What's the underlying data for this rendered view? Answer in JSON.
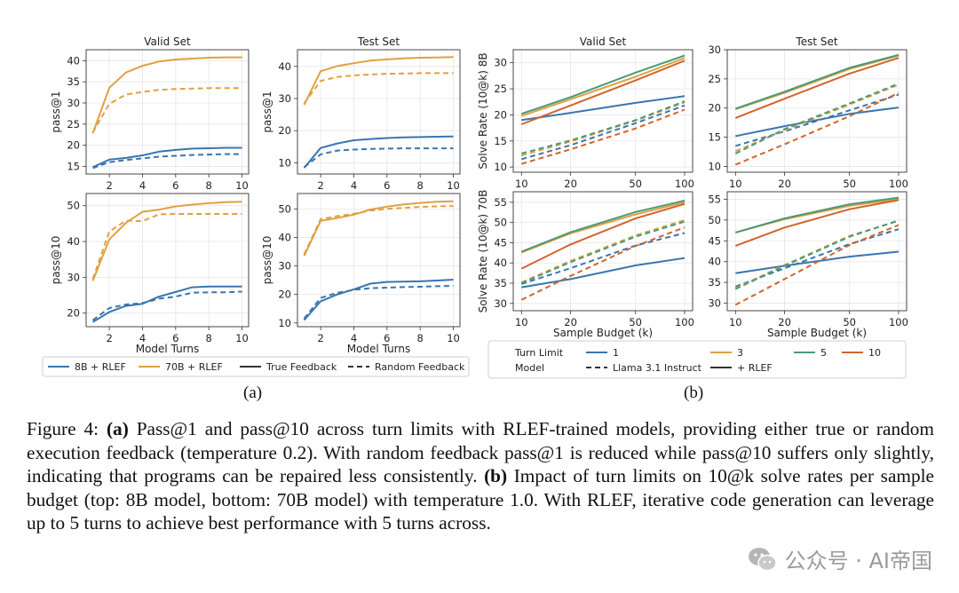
{
  "colors": {
    "blue": "#3a75b0",
    "gold": "#e0a043",
    "green": "#4a9a78",
    "orange": "#d0652a",
    "axis": "#333333",
    "grid": "#e6e6e6"
  },
  "chart_data": [
    {
      "id": "a_valid_pass1",
      "type": "line",
      "title": "Valid Set",
      "xlabel": "",
      "ylabel": "pass@1",
      "xlim": [
        0.6,
        10.4
      ],
      "ylim": [
        13.2,
        42.6
      ],
      "xticks": [
        2,
        4,
        6,
        8,
        10
      ],
      "yticks": [
        15,
        20,
        25,
        30,
        35,
        40
      ],
      "x": [
        1,
        2,
        3,
        4,
        5,
        6,
        7,
        8,
        9,
        10
      ],
      "series": [
        {
          "name": "70B + RLEF, True Feedback",
          "color": "#e0a043",
          "dash": false,
          "values": [
            22.8,
            33.6,
            37.2,
            38.8,
            39.8,
            40.3,
            40.5,
            40.7,
            40.8,
            40.8
          ]
        },
        {
          "name": "70B + RLEF, Random Feedback",
          "color": "#e0a043",
          "dash": true,
          "values": [
            23.0,
            29.8,
            32.0,
            32.6,
            33.1,
            33.3,
            33.4,
            33.5,
            33.5,
            33.5
          ]
        },
        {
          "name": "8B + RLEF, True Feedback",
          "color": "#3a75b0",
          "dash": false,
          "values": [
            14.8,
            16.6,
            17.0,
            17.6,
            18.5,
            18.9,
            19.2,
            19.3,
            19.4,
            19.4
          ]
        },
        {
          "name": "8B + RLEF, Random Feedback",
          "color": "#3a75b0",
          "dash": true,
          "values": [
            14.6,
            16.0,
            16.5,
            16.9,
            17.3,
            17.5,
            17.7,
            17.8,
            17.9,
            17.9
          ]
        }
      ]
    },
    {
      "id": "a_test_pass1",
      "type": "line",
      "title": "Test Set",
      "xlabel": "",
      "ylabel": "pass@1",
      "xlim": [
        0.6,
        10.4
      ],
      "ylim": [
        6.5,
        45.2
      ],
      "xticks": [
        2,
        4,
        6,
        8,
        10
      ],
      "yticks": [
        10,
        20,
        30,
        40
      ],
      "x": [
        1,
        2,
        3,
        4,
        5,
        6,
        7,
        8,
        9,
        10
      ],
      "series": [
        {
          "name": "70B + RLEF, True Feedback",
          "color": "#e0a043",
          "dash": false,
          "values": [
            28.0,
            38.5,
            40.1,
            41.0,
            41.8,
            42.2,
            42.5,
            42.7,
            42.8,
            42.9
          ]
        },
        {
          "name": "70B + RLEF, Random Feedback",
          "color": "#e0a043",
          "dash": true,
          "values": [
            28.5,
            35.5,
            36.7,
            37.2,
            37.5,
            37.7,
            37.8,
            37.9,
            37.9,
            37.9
          ]
        },
        {
          "name": "8B + RLEF, True Feedback",
          "color": "#3a75b0",
          "dash": false,
          "values": [
            8.4,
            14.6,
            16.0,
            17.0,
            17.4,
            17.7,
            17.9,
            18.0,
            18.1,
            18.2
          ]
        },
        {
          "name": "8B + RLEF, Random Feedback",
          "color": "#3a75b0",
          "dash": true,
          "values": [
            8.6,
            12.6,
            13.8,
            14.1,
            14.3,
            14.4,
            14.5,
            14.5,
            14.5,
            14.5
          ]
        }
      ]
    },
    {
      "id": "a_valid_pass10",
      "type": "line",
      "title": "",
      "xlabel": "Model Turns",
      "ylabel": "pass@10",
      "xlim": [
        0.6,
        10.4
      ],
      "ylim": [
        16.2,
        53.4
      ],
      "xticks": [
        2,
        4,
        6,
        8,
        10
      ],
      "yticks": [
        20,
        30,
        40,
        50
      ],
      "x": [
        1,
        2,
        3,
        4,
        5,
        6,
        7,
        8,
        9,
        10
      ],
      "series": [
        {
          "name": "70B + RLEF, True Feedback",
          "color": "#e0a043",
          "dash": false,
          "values": [
            29.0,
            40.6,
            45.2,
            48.3,
            48.9,
            49.8,
            50.3,
            50.7,
            51.0,
            51.1
          ]
        },
        {
          "name": "70B + RLEF, Random Feedback",
          "color": "#e0a043",
          "dash": true,
          "values": [
            29.5,
            42.8,
            45.8,
            45.7,
            47.6,
            47.7,
            47.7,
            47.7,
            47.7,
            47.7
          ]
        },
        {
          "name": "8B + RLEF, True Feedback",
          "color": "#3a75b0",
          "dash": false,
          "values": [
            17.5,
            20.3,
            22.0,
            22.6,
            24.6,
            25.9,
            27.2,
            27.4,
            27.4,
            27.4
          ]
        },
        {
          "name": "8B + RLEF, Random Feedback",
          "color": "#3a75b0",
          "dash": true,
          "values": [
            18.0,
            21.4,
            22.4,
            22.8,
            24.0,
            24.6,
            25.7,
            25.8,
            25.8,
            26.0
          ]
        }
      ]
    },
    {
      "id": "a_test_pass10",
      "type": "line",
      "title": "",
      "xlabel": "Model Turns",
      "ylabel": "pass@10",
      "xlim": [
        0.6,
        10.4
      ],
      "ylim": [
        8.7,
        55.4
      ],
      "xticks": [
        2,
        4,
        6,
        8,
        10
      ],
      "yticks": [
        10,
        20,
        30,
        40,
        50
      ],
      "x": [
        1,
        2,
        3,
        4,
        5,
        6,
        7,
        8,
        9,
        10
      ],
      "series": [
        {
          "name": "70B + RLEF, True Feedback",
          "color": "#e0a043",
          "dash": false,
          "values": [
            33.5,
            45.8,
            46.8,
            48.0,
            49.8,
            50.8,
            51.6,
            52.1,
            52.5,
            52.7
          ]
        },
        {
          "name": "70B + RLEF, Random Feedback",
          "color": "#e0a043",
          "dash": true,
          "values": [
            34.0,
            46.4,
            47.5,
            48.3,
            49.4,
            50.0,
            50.4,
            50.7,
            50.9,
            51.0
          ]
        },
        {
          "name": "8B + RLEF, True Feedback",
          "color": "#3a75b0",
          "dash": false,
          "values": [
            11.0,
            17.6,
            20.0,
            21.8,
            23.8,
            24.4,
            24.5,
            24.6,
            24.9,
            25.2
          ]
        },
        {
          "name": "8B + RLEF, Random Feedback",
          "color": "#3a75b0",
          "dash": true,
          "values": [
            11.5,
            18.8,
            20.6,
            21.6,
            22.2,
            22.4,
            22.6,
            22.7,
            22.9,
            23.0
          ]
        }
      ]
    },
    {
      "id": "b_valid_8b",
      "type": "line",
      "xscale": "log",
      "title": "Valid Set",
      "xlabel": "",
      "ylabel": "Solve Rate (10@k) 8B",
      "xlim": [
        8.9,
        112
      ],
      "ylim": [
        9.0,
        32.5
      ],
      "xticks": [
        10,
        20,
        50,
        100
      ],
      "yticks": [
        10,
        15,
        20,
        25,
        30
      ],
      "x": [
        10,
        20,
        50,
        100
      ],
      "series": [
        {
          "name": "Turn Limit 1, + RLEF",
          "color": "#3a75b0",
          "dash": false,
          "values": [
            19.0,
            20.4,
            22.3,
            23.6
          ]
        },
        {
          "name": "Turn Limit 3, + RLEF",
          "color": "#e0a043",
          "dash": false,
          "values": [
            19.8,
            23.0,
            27.3,
            30.9
          ]
        },
        {
          "name": "Turn Limit 5, + RLEF",
          "color": "#4a9a78",
          "dash": false,
          "values": [
            20.2,
            23.4,
            28.1,
            31.4
          ]
        },
        {
          "name": "Turn Limit 10, + RLEF",
          "color": "#d0652a",
          "dash": false,
          "values": [
            18.2,
            21.8,
            26.6,
            30.4
          ]
        },
        {
          "name": "Turn Limit 1, Llama 3.1 Instruct",
          "color": "#3a75b0",
          "dash": true,
          "values": [
            11.5,
            14.2,
            18.4,
            21.8
          ]
        },
        {
          "name": "Turn Limit 3, Llama 3.1 Instruct",
          "color": "#e0a043",
          "dash": true,
          "values": [
            12.2,
            14.9,
            18.9,
            22.4
          ]
        },
        {
          "name": "Turn Limit 5, Llama 3.1 Instruct",
          "color": "#4a9a78",
          "dash": true,
          "values": [
            12.6,
            15.1,
            19.0,
            22.6
          ]
        },
        {
          "name": "Turn Limit 10, Llama 3.1 Instruct",
          "color": "#d0652a",
          "dash": true,
          "values": [
            10.6,
            13.4,
            17.4,
            21.0
          ]
        }
      ]
    },
    {
      "id": "b_test_8b",
      "type": "line",
      "xscale": "log",
      "title": "Test Set",
      "xlabel": "",
      "ylabel": "",
      "xlim": [
        8.9,
        112
      ],
      "ylim": [
        9.0,
        30.0
      ],
      "xticks": [
        10,
        20,
        50,
        100
      ],
      "yticks": [
        10,
        15,
        20,
        25,
        30
      ],
      "x": [
        10,
        20,
        50,
        100
      ],
      "series": [
        {
          "name": "Turn Limit 1, + RLEF",
          "color": "#3a75b0",
          "dash": false,
          "values": [
            15.2,
            16.9,
            19.0,
            20.1
          ]
        },
        {
          "name": "Turn Limit 3, + RLEF",
          "color": "#e0a043",
          "dash": false,
          "values": [
            19.8,
            22.6,
            26.7,
            29.0
          ]
        },
        {
          "name": "Turn Limit 5, + RLEF",
          "color": "#4a9a78",
          "dash": false,
          "values": [
            19.9,
            22.8,
            26.9,
            29.1
          ]
        },
        {
          "name": "Turn Limit 10, + RLEF",
          "color": "#d0652a",
          "dash": false,
          "values": [
            18.3,
            21.6,
            25.9,
            28.6
          ]
        },
        {
          "name": "Turn Limit 1, Llama 3.1 Instruct",
          "color": "#3a75b0",
          "dash": true,
          "values": [
            13.5,
            16.0,
            19.6,
            22.3
          ]
        },
        {
          "name": "Turn Limit 3, Llama 3.1 Instruct",
          "color": "#e0a043",
          "dash": true,
          "values": [
            12.6,
            16.2,
            20.6,
            24.0
          ]
        },
        {
          "name": "Turn Limit 5, Llama 3.1 Instruct",
          "color": "#4a9a78",
          "dash": true,
          "values": [
            12.2,
            16.4,
            20.8,
            24.2
          ]
        },
        {
          "name": "Turn Limit 10, Llama 3.1 Instruct",
          "color": "#d0652a",
          "dash": true,
          "values": [
            10.3,
            13.8,
            18.6,
            22.6
          ]
        }
      ]
    },
    {
      "id": "b_valid_70b",
      "type": "line",
      "xscale": "log",
      "title": "",
      "xlabel": "Sample Budget (k)",
      "ylabel": "Solve Rate (10@k) 70B",
      "xlim": [
        8.9,
        112
      ],
      "ylim": [
        28.2,
        57.6
      ],
      "xticks": [
        10,
        20,
        50,
        100
      ],
      "yticks": [
        30,
        35,
        40,
        45,
        50,
        55
      ],
      "x": [
        10,
        20,
        50,
        100
      ],
      "series": [
        {
          "name": "Turn Limit 1, + RLEF",
          "color": "#3a75b0",
          "dash": false,
          "values": [
            34.0,
            36.0,
            39.4,
            41.2
          ]
        },
        {
          "name": "Turn Limit 3, + RLEF",
          "color": "#e0a043",
          "dash": false,
          "values": [
            42.6,
            47.3,
            52.0,
            55.0
          ]
        },
        {
          "name": "Turn Limit 5, + RLEF",
          "color": "#4a9a78",
          "dash": false,
          "values": [
            42.8,
            47.6,
            52.6,
            55.4
          ]
        },
        {
          "name": "Turn Limit 10, + RLEF",
          "color": "#d0652a",
          "dash": false,
          "values": [
            38.6,
            44.6,
            51.0,
            54.6
          ]
        },
        {
          "name": "Turn Limit 1, Llama 3.1 Instruct",
          "color": "#3a75b0",
          "dash": true,
          "values": [
            34.8,
            38.7,
            44.3,
            47.4
          ]
        },
        {
          "name": "Turn Limit 3, Llama 3.1 Instruct",
          "color": "#e0a043",
          "dash": true,
          "values": [
            35.2,
            40.5,
            46.8,
            50.6
          ]
        },
        {
          "name": "Turn Limit 5, Llama 3.1 Instruct",
          "color": "#4a9a78",
          "dash": true,
          "values": [
            35.0,
            40.2,
            46.5,
            50.2
          ]
        },
        {
          "name": "Turn Limit 10, Llama 3.1 Instruct",
          "color": "#d0652a",
          "dash": true,
          "values": [
            30.9,
            36.8,
            44.2,
            48.8
          ]
        }
      ]
    },
    {
      "id": "b_test_70b",
      "type": "line",
      "xscale": "log",
      "title": "",
      "xlabel": "Sample Budget (k)",
      "ylabel": "",
      "xlim": [
        8.9,
        112
      ],
      "ylim": [
        28.2,
        56.8
      ],
      "xticks": [
        10,
        20,
        50,
        100
      ],
      "yticks": [
        30,
        35,
        40,
        45,
        50,
        55
      ],
      "x": [
        10,
        20,
        50,
        100
      ],
      "series": [
        {
          "name": "Turn Limit 1, + RLEF",
          "color": "#3a75b0",
          "dash": false,
          "values": [
            37.2,
            39.0,
            41.2,
            42.4
          ]
        },
        {
          "name": "Turn Limit 3, + RLEF",
          "color": "#e0a043",
          "dash": false,
          "values": [
            47.0,
            50.2,
            53.4,
            55.0
          ]
        },
        {
          "name": "Turn Limit 5, + RLEF",
          "color": "#4a9a78",
          "dash": false,
          "values": [
            47.0,
            50.4,
            53.8,
            55.4
          ]
        },
        {
          "name": "Turn Limit 10, + RLEF",
          "color": "#d0652a",
          "dash": false,
          "values": [
            43.8,
            48.2,
            52.6,
            54.8
          ]
        },
        {
          "name": "Turn Limit 1, Llama 3.1 Instruct",
          "color": "#3a75b0",
          "dash": true,
          "values": [
            34.0,
            38.4,
            44.2,
            47.8
          ]
        },
        {
          "name": "Turn Limit 3, Llama 3.1 Instruct",
          "color": "#e0a043",
          "dash": true,
          "values": [
            33.6,
            39.2,
            46.2,
            49.8
          ]
        },
        {
          "name": "Turn Limit 5, Llama 3.1 Instruct",
          "color": "#4a9a78",
          "dash": true,
          "values": [
            33.4,
            39.0,
            46.0,
            49.9
          ]
        },
        {
          "name": "Turn Limit 10, Llama 3.1 Instruct",
          "color": "#d0652a",
          "dash": true,
          "values": [
            29.6,
            35.8,
            44.0,
            48.8
          ]
        }
      ]
    }
  ],
  "legend_a": {
    "items": [
      {
        "label": "8B + RLEF",
        "color": "#3a75b0",
        "dash": false
      },
      {
        "label": "70B + RLEF",
        "color": "#e0a043",
        "dash": false
      },
      {
        "label": "True Feedback",
        "color": "#333333",
        "dash": false
      },
      {
        "label": "Random Feedback",
        "color": "#333333",
        "dash": true
      }
    ]
  },
  "legend_b": {
    "turn_limit_label": "Turn Limit",
    "model_label": "Model",
    "turn_items": [
      {
        "label": "1",
        "color": "#3a75b0"
      },
      {
        "label": "3",
        "color": "#e0a043"
      },
      {
        "label": "5",
        "color": "#4a9a78"
      },
      {
        "label": "10",
        "color": "#d0652a"
      }
    ],
    "model_items": [
      {
        "label": "Llama 3.1 Instruct",
        "color": "#333333",
        "dash": true
      },
      {
        "label": "+ RLEF",
        "color": "#333333",
        "dash": false
      }
    ]
  },
  "panel_labels": {
    "a": "(a)",
    "b": "(b)"
  },
  "caption": {
    "prefix": "Figure 4: ",
    "a_label": "(a)",
    "a_text": " Pass@1 and pass@10 across turn limits with RLEF-trained models, providing either true or random execution feedback (temperature 0.2). With random feedback pass@1 is reduced while pass@10 suffers only slightly, indicating that programs can be repaired less consistently. ",
    "b_label": "(b)",
    "b_text": " Impact of turn limits on 10@k solve rates per sample budget (top: 8B model, bottom: 70B model) with temperature 1.0. With RLEF, iterative code generation can leverage up to 5 turns to achieve best performance with 5 turns across."
  },
  "watermark": {
    "text": "公众号 · AI帝国",
    "icon": "wechat-icon"
  }
}
